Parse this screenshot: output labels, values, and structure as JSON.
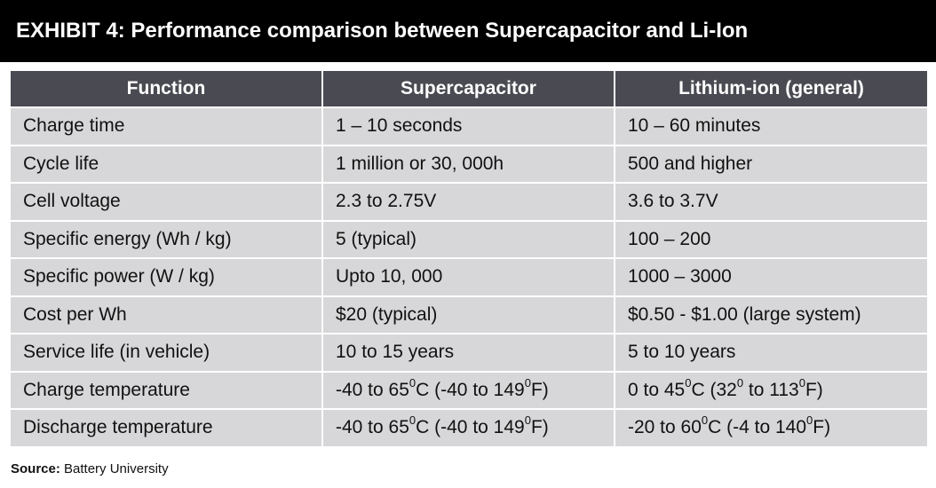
{
  "title": "EXHIBIT 4: Performance comparison between Supercapacitor and Li-Ion",
  "table": {
    "headers": [
      "Function",
      "Supercapacitor",
      "Lithium-ion (general)"
    ],
    "rows": [
      [
        "Charge time",
        "1 – 10 seconds",
        "10 – 60 minutes"
      ],
      [
        "Cycle life",
        "1 million or 30, 000h",
        "500 and higher"
      ],
      [
        "Cell voltage",
        "2.3 to 2.75V",
        "3.6 to 3.7V"
      ],
      [
        "Specific energy (Wh / kg)",
        "5 (typical)",
        "100 – 200"
      ],
      [
        "Specific power (W / kg)",
        "Upto  10, 000",
        "1000 – 3000"
      ],
      [
        "Cost per Wh",
        "$20 (typical)",
        "$0.50 - $1.00 (large system)"
      ],
      [
        "Service life (in vehicle)",
        "10 to 15 years",
        "5 to 10 years"
      ],
      [
        "Charge temperature",
        "-40 to 65^0C (-40 to 149^0F)",
        "0 to 45^0C (32^0 to 113^0F)"
      ],
      [
        "Discharge temperature",
        "-40 to 65^0C (-40 to 149^0F)",
        "-20 to 60^0C (-4 to 140^0F)"
      ]
    ]
  },
  "source": {
    "label": "Source:",
    "text": "Battery University"
  },
  "colors": {
    "header_bg": "#000000",
    "table_header_bg": "#4a4a52",
    "cell_bg": "#d7d7d9"
  }
}
